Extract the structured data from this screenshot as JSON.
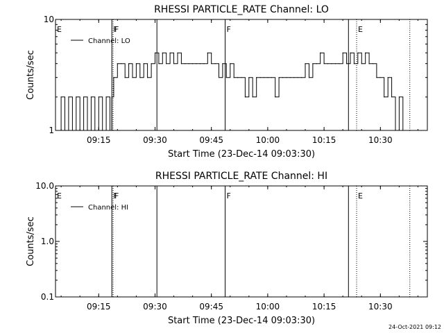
{
  "chart_data": [
    {
      "type": "line",
      "title": "RHESSI PARTICLE_RATE Channel: LO",
      "xlabel": "Start Time (23-Dec-14 09:03:30)",
      "ylabel": "Counts/sec",
      "y_scale": "log",
      "ylim": [
        1,
        10
      ],
      "y_ticks": [
        {
          "value": 1,
          "label": "1"
        },
        {
          "value": 10,
          "label": "10"
        }
      ],
      "xlim": [
        "09:03:30",
        "10:42:30"
      ],
      "x_ticks": [
        "09:15",
        "09:30",
        "09:45",
        "10:00",
        "10:15",
        "10:30"
      ],
      "legend": {
        "position": "top-left",
        "entries": [
          "Channel: LO"
        ]
      },
      "series": [
        {
          "name": "Channel: LO",
          "x": [
            "09:04:00",
            "09:05:00",
            "09:06:00",
            "09:07:00",
            "09:08:00",
            "09:09:00",
            "09:10:00",
            "09:11:00",
            "09:12:00",
            "09:13:00",
            "09:14:00",
            "09:15:00",
            "09:16:00",
            "09:17:00",
            "09:18:00",
            "09:18:30",
            "09:19:00",
            "09:20:00",
            "09:21:00",
            "09:22:00",
            "09:23:00",
            "09:24:00",
            "09:25:00",
            "09:26:00",
            "09:27:00",
            "09:28:00",
            "09:29:00",
            "09:30:00",
            "09:31:00",
            "09:32:00",
            "09:33:00",
            "09:34:00",
            "09:35:00",
            "09:36:00",
            "09:37:00",
            "09:38:00",
            "09:39:00",
            "09:40:00",
            "09:41:00",
            "09:42:00",
            "09:43:00",
            "09:44:00",
            "09:45:00",
            "09:46:00",
            "09:47:00",
            "09:48:00",
            "09:49:00",
            "09:50:00",
            "09:51:00",
            "09:52:00",
            "09:53:00",
            "09:54:00",
            "09:55:00",
            "09:56:00",
            "09:57:00",
            "09:58:00",
            "09:59:00",
            "10:00:00",
            "10:01:00",
            "10:02:00",
            "10:03:00",
            "10:04:00",
            "10:05:00",
            "10:06:00",
            "10:07:00",
            "10:08:00",
            "10:09:00",
            "10:10:00",
            "10:11:00",
            "10:12:00",
            "10:13:00",
            "10:14:00",
            "10:15:00",
            "10:16:00",
            "10:17:00",
            "10:18:00",
            "10:19:00",
            "10:20:00",
            "10:21:00",
            "10:22:00",
            "10:23:00",
            "10:24:00",
            "10:25:00",
            "10:26:00",
            "10:27:00",
            "10:28:00",
            "10:29:00",
            "10:30:00",
            "10:31:00",
            "10:32:00",
            "10:33:00",
            "10:34:00",
            "10:35:00",
            "10:36:00"
          ],
          "y": [
            1,
            2,
            1,
            2,
            1,
            2,
            1,
            2,
            1,
            2,
            1,
            2,
            1,
            2,
            1,
            2,
            3,
            4,
            4,
            3,
            4,
            3,
            4,
            3,
            4,
            3,
            4,
            5,
            4,
            5,
            4,
            5,
            4,
            5,
            4,
            4,
            4,
            4,
            4,
            4,
            4,
            5,
            4,
            4,
            3,
            4,
            3,
            4,
            3,
            3,
            3,
            2,
            3,
            2,
            3,
            3,
            3,
            3,
            3,
            2,
            3,
            3,
            3,
            3,
            3,
            3,
            3,
            4,
            3,
            4,
            4,
            5,
            4,
            4,
            4,
            4,
            4,
            5,
            4,
            5,
            4,
            5,
            4,
            5,
            4,
            4,
            3,
            3,
            2,
            3,
            2,
            1,
            2,
            1
          ]
        }
      ],
      "markers": [
        {
          "label": "E",
          "time": "09:03:30",
          "style": "solid"
        },
        {
          "label": "F",
          "time": "09:18:50",
          "style": "dotted"
        },
        {
          "label": "F",
          "time": "09:18:30",
          "style": "solid"
        },
        {
          "label": "",
          "time": "09:30:30",
          "style": "solid"
        },
        {
          "label": "F",
          "time": "09:48:40",
          "style": "solid"
        },
        {
          "label": "",
          "time": "10:21:30",
          "style": "solid"
        },
        {
          "label": "E",
          "time": "10:23:40",
          "style": "dotted"
        },
        {
          "label": "",
          "time": "10:37:50",
          "style": "dotted"
        }
      ]
    },
    {
      "type": "line",
      "title": "RHESSI PARTICLE_RATE Channel: HI",
      "xlabel": "Start Time (23-Dec-14 09:03:30)",
      "ylabel": "Counts/sec",
      "y_scale": "log",
      "ylim": [
        0.1,
        10
      ],
      "y_ticks": [
        {
          "value": 0.1,
          "label": "0.1"
        },
        {
          "value": 1,
          "label": "1.0"
        },
        {
          "value": 10,
          "label": "10.0"
        }
      ],
      "xlim": [
        "09:03:30",
        "10:42:30"
      ],
      "x_ticks": [
        "09:15",
        "09:30",
        "09:45",
        "10:00",
        "10:15",
        "10:30"
      ],
      "legend": {
        "position": "top-left",
        "entries": [
          "Channel: HI"
        ]
      },
      "series": [
        {
          "name": "Channel: HI",
          "x": [],
          "y": []
        }
      ],
      "markers": [
        {
          "label": "E",
          "time": "09:03:30",
          "style": "solid"
        },
        {
          "label": "F",
          "time": "09:18:50",
          "style": "dotted"
        },
        {
          "label": "F",
          "time": "09:18:30",
          "style": "solid"
        },
        {
          "label": "",
          "time": "09:30:30",
          "style": "solid"
        },
        {
          "label": "F",
          "time": "09:48:40",
          "style": "solid"
        },
        {
          "label": "",
          "time": "10:21:30",
          "style": "solid"
        },
        {
          "label": "E",
          "time": "10:23:40",
          "style": "dotted"
        },
        {
          "label": "",
          "time": "10:37:50",
          "style": "dotted"
        }
      ]
    }
  ],
  "footer": {
    "timestamp": "24-Oct-2021 09:12"
  }
}
